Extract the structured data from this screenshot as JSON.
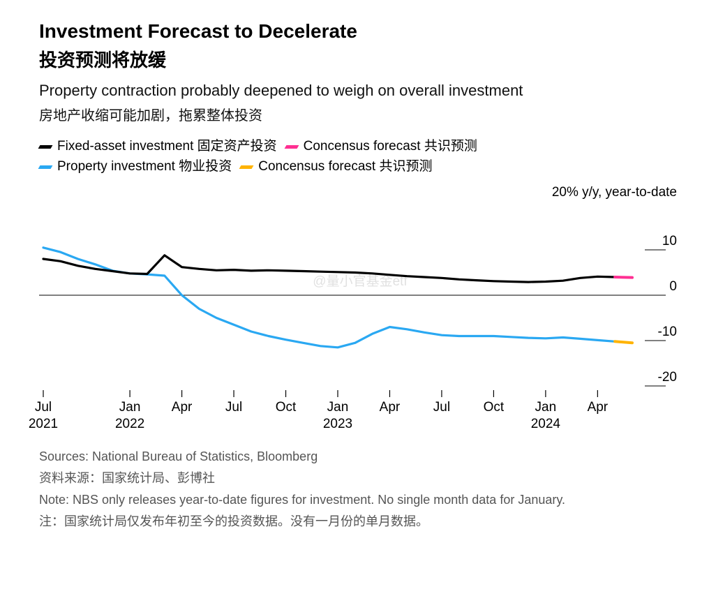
{
  "title_en": "Investment Forecast to Decelerate",
  "title_zh": "投资预测将放缓",
  "subtitle_en": "Property contraction probably deepened to weigh on overall investment",
  "subtitle_zh": "房地产收缩可能加剧，拖累整体投资",
  "legend": {
    "series": [
      {
        "label": "Fixed-asset investment 固定资产投资",
        "color": "#000000"
      },
      {
        "label": "Concensus forecast 共识预测",
        "color": "#ff2f92"
      },
      {
        "label": "Property investment 物业投资",
        "color": "#2aa8f2"
      },
      {
        "label": "Concensus forecast 共识预测",
        "color": "#ffb300"
      }
    ]
  },
  "watermark": "@量小官基金etf",
  "chart": {
    "type": "line",
    "y_axis_label": "20% y/y, year-to-date",
    "ylim": [
      -20,
      20
    ],
    "yticks": [
      {
        "v": 10,
        "label": "10"
      },
      {
        "v": 0,
        "label": "0"
      },
      {
        "v": -10,
        "label": "-10"
      },
      {
        "v": -20,
        "label": "-20"
      }
    ],
    "zero_line_value": 0,
    "background_color": "#ffffff",
    "grid_color": "#000000",
    "line_width": 3.2,
    "forecast_line_width": 4,
    "x_ticks": [
      {
        "i": 0,
        "top": "Jul",
        "bottom": "2021"
      },
      {
        "i": 5,
        "top": "Jan",
        "bottom": "2022"
      },
      {
        "i": 8,
        "top": "Apr",
        "bottom": ""
      },
      {
        "i": 11,
        "top": "Jul",
        "bottom": ""
      },
      {
        "i": 14,
        "top": "Oct",
        "bottom": ""
      },
      {
        "i": 17,
        "top": "Jan",
        "bottom": "2023"
      },
      {
        "i": 20,
        "top": "Apr",
        "bottom": ""
      },
      {
        "i": 23,
        "top": "Jul",
        "bottom": ""
      },
      {
        "i": 26,
        "top": "Oct",
        "bottom": ""
      },
      {
        "i": 29,
        "top": "Jan",
        "bottom": "2024"
      },
      {
        "i": 32,
        "top": "Apr",
        "bottom": ""
      }
    ],
    "n_points": 35,
    "series": {
      "fixed_asset": {
        "color": "#000000",
        "values": [
          8.0,
          7.5,
          6.5,
          5.8,
          5.3,
          4.8,
          4.7,
          8.8,
          6.2,
          5.8,
          5.5,
          5.6,
          5.4,
          5.5,
          5.4,
          5.3,
          5.2,
          5.1,
          5.0,
          4.8,
          4.5,
          4.2,
          4.0,
          3.8,
          3.5,
          3.3,
          3.1,
          3.0,
          2.9,
          3.0,
          3.2,
          3.8,
          4.1,
          4.0
        ],
        "forecast_color": "#ff2f92",
        "forecast_values": [
          4.0,
          3.9
        ]
      },
      "property": {
        "color": "#2aa8f2",
        "values": [
          10.5,
          9.5,
          8.0,
          6.8,
          5.4,
          4.8,
          4.6,
          4.3,
          0.0,
          -3.0,
          -5.0,
          -6.5,
          -8.0,
          -9.0,
          -9.8,
          -10.5,
          -11.2,
          -11.5,
          -10.5,
          -8.5,
          -7.0,
          -7.5,
          -8.2,
          -8.8,
          -9.0,
          -9.0,
          -9.0,
          -9.2,
          -9.4,
          -9.5,
          -9.3,
          -9.6,
          -9.9,
          -10.2
        ],
        "forecast_color": "#ffb300",
        "forecast_values": [
          -10.2,
          -10.5
        ]
      }
    }
  },
  "sources": {
    "en": "Sources: National Bureau of Statistics, Bloomberg",
    "zh": "资料来源：国家统计局、彭博社"
  },
  "note": {
    "en": "Note: NBS only releases year-to-date figures for investment. No single month data for January.",
    "zh": "注：国家统计局仅发布年初至今的投资数据。没有一月份的单月数据。"
  }
}
